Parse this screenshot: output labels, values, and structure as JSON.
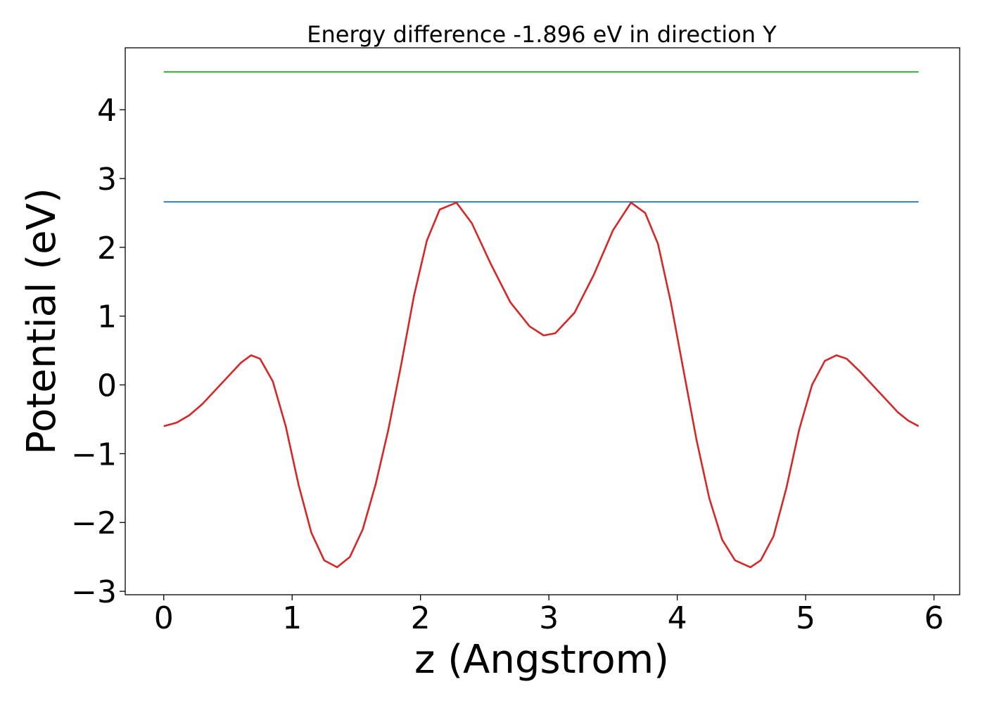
{
  "chart_data": {
    "type": "line",
    "title": "Energy difference -1.896 eV in direction Y",
    "xlabel": "z (Angstrom)",
    "ylabel": "Potential (eV)",
    "xlim": [
      -0.3,
      6.2
    ],
    "ylim": [
      -3.05,
      4.9
    ],
    "xticks": [
      0,
      1,
      2,
      3,
      4,
      5,
      6
    ],
    "xtick_labels": [
      "0",
      "1",
      "2",
      "3",
      "4",
      "5",
      "6"
    ],
    "yticks": [
      -3,
      -2,
      -1,
      0,
      1,
      2,
      3,
      4
    ],
    "ytick_labels": [
      "−3",
      "−2",
      "−1",
      "0",
      "1",
      "2",
      "3",
      "4"
    ],
    "grid": false,
    "series": [
      {
        "color": "#2ca02c",
        "x": [
          0,
          5.88
        ],
        "y": [
          4.55,
          4.55
        ]
      },
      {
        "color": "#1f77b4",
        "x": [
          0,
          5.88
        ],
        "y": [
          2.66,
          2.66
        ]
      },
      {
        "color": "#d62728",
        "x": [
          0,
          0.1,
          0.2,
          0.3,
          0.4,
          0.5,
          0.6,
          0.68,
          0.75,
          0.85,
          0.95,
          1.05,
          1.15,
          1.25,
          1.35,
          1.45,
          1.55,
          1.65,
          1.75,
          1.85,
          1.95,
          2.05,
          2.15,
          2.28,
          2.4,
          2.55,
          2.7,
          2.85,
          2.96,
          3.05,
          3.2,
          3.35,
          3.5,
          3.64,
          3.75,
          3.85,
          3.95,
          4.05,
          4.15,
          4.25,
          4.35,
          4.45,
          4.57,
          4.65,
          4.75,
          4.85,
          4.95,
          5.05,
          5.15,
          5.24,
          5.32,
          5.42,
          5.52,
          5.62,
          5.72,
          5.8,
          5.88
        ],
        "y": [
          -0.6,
          -0.55,
          -0.44,
          -0.28,
          -0.08,
          0.12,
          0.32,
          0.43,
          0.38,
          0.05,
          -0.6,
          -1.45,
          -2.15,
          -2.55,
          -2.65,
          -2.5,
          -2.1,
          -1.45,
          -0.65,
          0.3,
          1.3,
          2.1,
          2.55,
          2.65,
          2.35,
          1.75,
          1.2,
          0.85,
          0.72,
          0.75,
          1.05,
          1.6,
          2.25,
          2.65,
          2.5,
          2.05,
          1.2,
          0.2,
          -0.8,
          -1.65,
          -2.25,
          -2.55,
          -2.65,
          -2.55,
          -2.2,
          -1.5,
          -0.65,
          0.0,
          0.35,
          0.43,
          0.38,
          0.2,
          0.0,
          -0.2,
          -0.4,
          -0.52,
          -0.6
        ]
      }
    ]
  }
}
